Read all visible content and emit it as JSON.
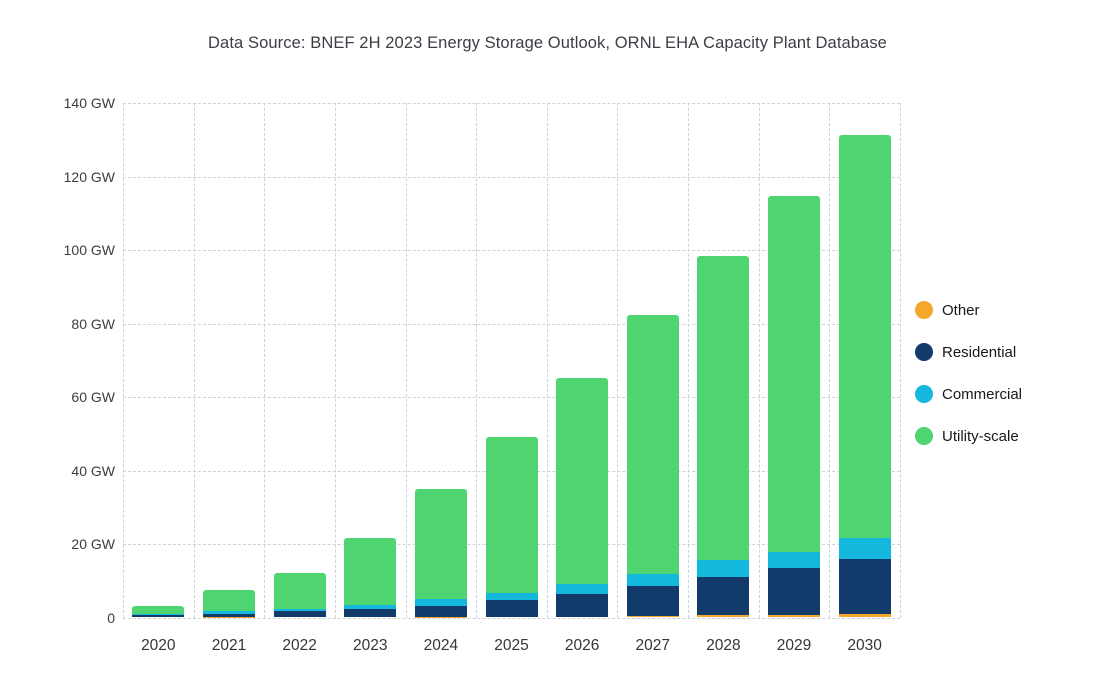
{
  "title": "Data Source: BNEF 2H 2023 Energy Storage Outlook, ORNL EHA Capacity Plant Database",
  "colors": {
    "other": "#F5A62C",
    "residential": "#123A6B",
    "commercial": "#14B8DC",
    "utility": "#4ED471",
    "grid": "#CFD2D6",
    "axis_text": "#3A3D42",
    "background": "#FFFFFF"
  },
  "legend": {
    "items": [
      {
        "key": "other",
        "label": "Other"
      },
      {
        "key": "residential",
        "label": "Residential"
      },
      {
        "key": "commercial",
        "label": "Commercial"
      },
      {
        "key": "utility",
        "label": "Utility-scale"
      }
    ]
  },
  "chart_data": {
    "type": "bar",
    "stacked": true,
    "title": "Data Source: BNEF 2H 2023 Energy Storage Outlook, ORNL EHA Capacity Plant Database",
    "categories": [
      "2020",
      "2021",
      "2022",
      "2023",
      "2024",
      "2025",
      "2026",
      "2027",
      "2028",
      "2029",
      "2030"
    ],
    "unit": "GW",
    "stack_order_bottom_to_top": [
      "Other",
      "Residential",
      "Commercial",
      "Utility-scale"
    ],
    "series": [
      {
        "name": "Other",
        "key": "other",
        "values": [
          0.05,
          0.05,
          0.05,
          0.1,
          0.1,
          0.15,
          0.2,
          0.35,
          0.75,
          0.75,
          0.95
        ]
      },
      {
        "name": "Residential",
        "key": "residential",
        "values": [
          0.5,
          0.9,
          1.6,
          2.3,
          3.1,
          4.6,
          6.2,
          8.3,
          10.25,
          12.85,
          14.95
        ]
      },
      {
        "name": "Commercial",
        "key": "commercial",
        "values": [
          0.5,
          0.85,
          0.75,
          1.1,
          1.9,
          2.0,
          2.7,
          3.25,
          4.7,
          4.2,
          5.7
        ]
      },
      {
        "name": "Utility-scale",
        "key": "utility",
        "values": [
          2.15,
          5.7,
          9.6,
          18.0,
          29.9,
          42.25,
          56.1,
          70.4,
          82.7,
          97.0,
          109.7
        ]
      }
    ],
    "totals": [
      3.2,
      7.5,
      12.0,
      21.5,
      35.0,
      49.0,
      65.2,
      82.3,
      98.4,
      114.8,
      131.3
    ],
    "xlabel": "",
    "ylabel": "",
    "ylim": [
      0,
      140
    ],
    "y_ticks": [
      {
        "value": 0,
        "label": "0"
      },
      {
        "value": 20,
        "label": "20 GW"
      },
      {
        "value": 40,
        "label": "40 GW"
      },
      {
        "value": 60,
        "label": "60 GW"
      },
      {
        "value": 80,
        "label": "80 GW"
      },
      {
        "value": 100,
        "label": "100 GW"
      },
      {
        "value": 120,
        "label": "120 GW"
      },
      {
        "value": 140,
        "label": "140 GW"
      }
    ],
    "grid": true,
    "legend_position": "right"
  }
}
